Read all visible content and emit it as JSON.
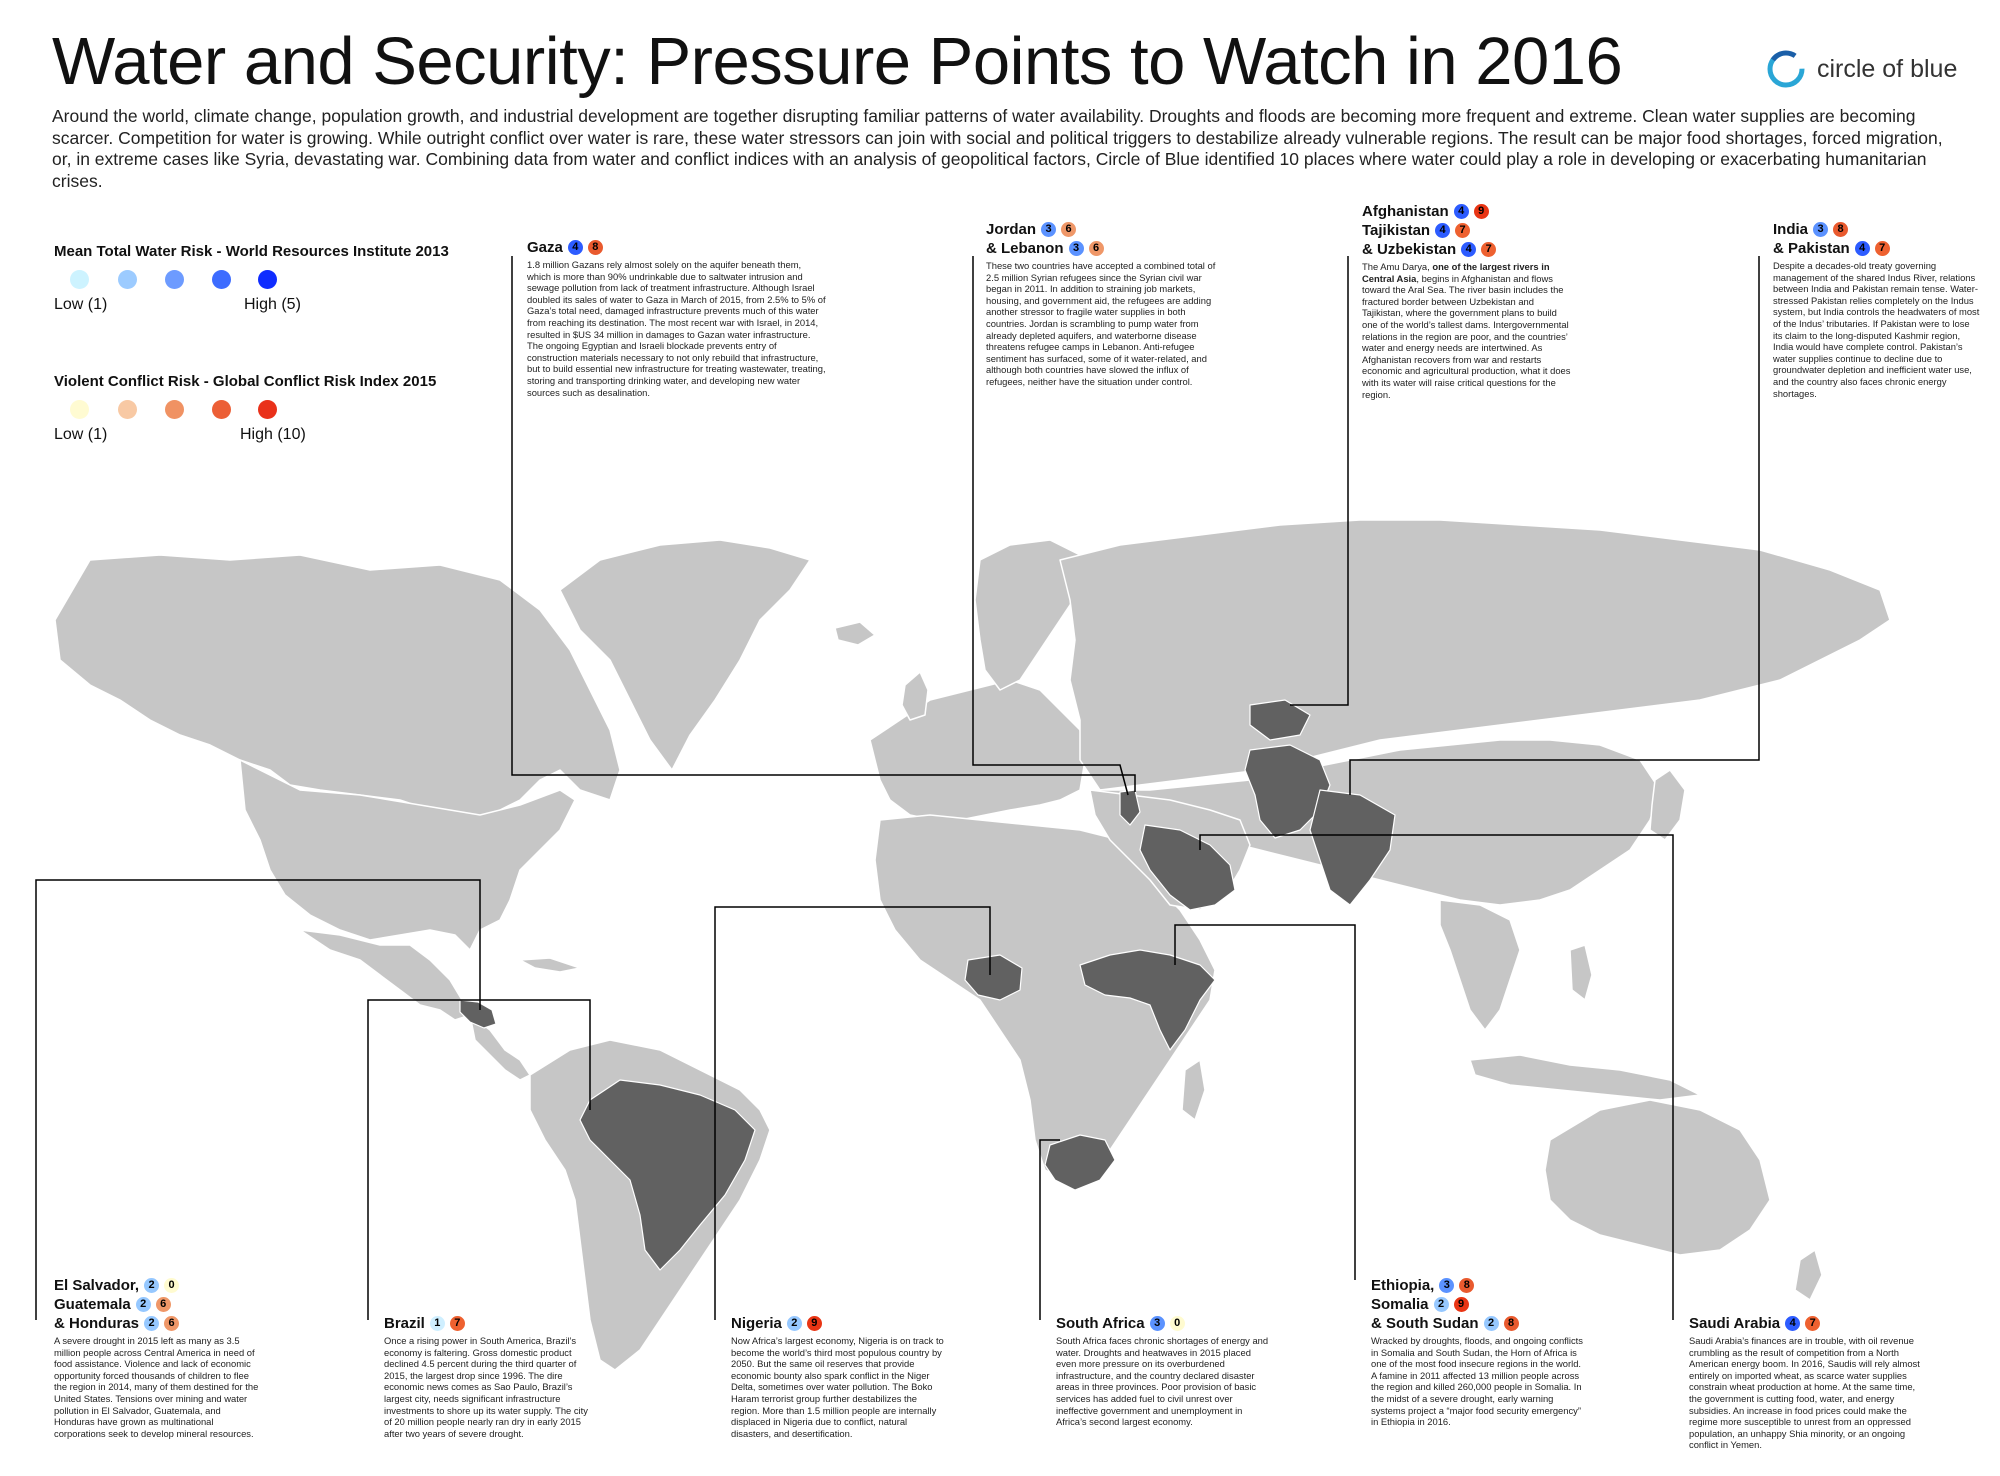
{
  "title": "Water and Security: Pressure Points to Watch in 2016",
  "logo": {
    "text": "circle of blue",
    "icon": "circle-of-blue-logo"
  },
  "intro": "Around the world, climate change, population growth, and industrial development are together disrupting familiar patterns of water availability. Droughts and floods are becoming more frequent and extreme. Clean water supplies are becoming scarcer. Competition for water is growing. While outright conflict over water is rare, these water stressors can join with social and political triggers to destabilize already vulnerable regions. The result can be major food shortages, forced migration, or, in extreme cases like Syria, devastating war. Combining data from water and conflict indices with an analysis of geopolitical factors, Circle of Blue identified 10 places where water could play a role in developing or exacerbating humanitarian crises.",
  "legend": {
    "water": {
      "title": "Mean Total Water Risk - World Resources Institute 2013",
      "low": "Low (1)",
      "high": "High (5)",
      "colors": [
        "#cdf3ff",
        "#9ccbff",
        "#6d9bff",
        "#3d6cff",
        "#0f2cff"
      ]
    },
    "conflict": {
      "title": "Violent Conflict Risk - Global Conflict Risk Index 2015",
      "low": "Low (1)",
      "high": "High (10)",
      "colors": [
        "#fffbd2",
        "#f8c9a4",
        "#f09263",
        "#ec5f36",
        "#e9311a"
      ]
    }
  },
  "colors": {
    "land": "#c6c6c6",
    "highlight": "#616161",
    "border": "#ffffff",
    "leader": "#000000"
  },
  "callouts": {
    "gaza": {
      "rows": [
        {
          "name": "Gaza",
          "water": "4",
          "conflict": "8"
        }
      ],
      "text": "1.8 million Gazans rely almost solely on the aquifer beneath them, which is more than 90% undrinkable due to saltwater intrusion and sewage pollution from lack of treatment infrastructure. Although Israel doubled its sales of water to Gaza in March of 2015, from 2.5% to 5% of Gaza’s total need, damaged infrastructure prevents much of this water from reaching its destination. The most recent war with Israel, in 2014, resulted in $US 34 million in damages to Gazan water infrastructure. The ongoing Egyptian and Israeli blockade prevents entry of construction materials necessary to not only rebuild that infrastructure, but to build essential new infrastructure for treating wastewater, treating, storing and transporting drinking water, and developing new water sources such as desalination."
    },
    "jordan": {
      "rows": [
        {
          "name": "Jordan",
          "water": "3",
          "conflict": "6"
        },
        {
          "name": "& Lebanon",
          "water": "3",
          "conflict": "6"
        }
      ],
      "text": "These two countries have accepted a combined total of 2.5 million Syrian refugees since the Syrian civil war began in 2011. In addition to straining job markets, housing, and government aid, the refugees are adding another stressor to fragile water supplies in both countries. Jordan is scrambling to pump water from already depleted aquifers, and waterborne disease threatens refugee camps in Lebanon. Anti-refugee sentiment has surfaced, some of it water-related, and although both countries have slowed the influx of refugees, neither have the situation under control."
    },
    "afghanistan": {
      "rows": [
        {
          "name": "Afghanistan",
          "water": "4",
          "conflict": "9"
        },
        {
          "name": "Tajikistan",
          "water": "4",
          "conflict": "7"
        },
        {
          "name": "& Uzbekistan",
          "water": "4",
          "conflict": "7"
        }
      ],
      "text_a": "The Amu Darya, ",
      "text_bold": "one of the largest rivers in Central Asia",
      "text_b": ", begins in Afghanistan and flows toward the Aral Sea. The river basin includes the fractured border between Uzbekistan and Tajikistan, where the government plans to build one of the world’s tallest dams. Intergovernmental relations in the region are poor, and the countries’ water and energy needs are intertwined. As Afghanistan recovers from war and restarts economic and agricultural production, what it does with its water will raise critical questions for the region."
    },
    "india": {
      "rows": [
        {
          "name": "India",
          "water": "3",
          "conflict": "8"
        },
        {
          "name": "& Pakistan",
          "water": "4",
          "conflict": "7"
        }
      ],
      "text": "Despite a decades-old treaty governing management of the shared Indus River, relations between India and Pakistan remain tense. Water-stressed Pakistan relies completely on the Indus system, but India controls the headwaters of most of the Indus’ tributaries. If Pakistan were to lose its claim to the long-disputed Kashmir region, India would have complete control. Pakistan’s water supplies continue to decline due to groundwater depletion and inefficient water use, and the country also faces chronic energy shortages."
    },
    "elsalvador": {
      "rows": [
        {
          "name": "El Salvador,",
          "water": "2",
          "conflict": "0"
        },
        {
          "name": "Guatemala",
          "water": "2",
          "conflict": "6"
        },
        {
          "name": "& Honduras",
          "water": "2",
          "conflict": "6"
        }
      ],
      "text": "A severe drought in 2015 left as many as 3.5 million people across Central America in need of food assistance. Violence and lack of economic opportunity forced thousands of children to flee the region in 2014, many of them destined for the United States. Tensions over mining and water pollution in El Salvador, Guatemala, and Honduras have grown as multinational corporations seek to develop mineral resources."
    },
    "brazil": {
      "rows": [
        {
          "name": "Brazil",
          "water": "1",
          "conflict": "7"
        }
      ],
      "text": "Once a rising power in South America, Brazil’s economy is faltering. Gross domestic product declined 4.5 percent during the third quarter of 2015, the largest drop since 1996. The dire economic news comes as Sao Paulo, Brazil’s largest city, needs significant infrastructure investments to shore up its water supply. The city of 20 million people nearly ran dry in early 2015 after two years of severe drought."
    },
    "nigeria": {
      "rows": [
        {
          "name": "Nigeria",
          "water": "2",
          "conflict": "9"
        }
      ],
      "text": "Now Africa’s largest economy, Nigeria is on track to become the world’s third most populous country by 2050. But the same oil reserves that provide economic bounty also spark conflict in the Niger Delta, sometimes over water pollution. The Boko Haram terrorist group further destabilizes the region. More than 1.5 million people are internally displaced in Nigeria due to conflict, natural disasters, and desertification."
    },
    "southafrica": {
      "rows": [
        {
          "name": "South Africa",
          "water": "3",
          "conflict": "0"
        }
      ],
      "text": "South Africa faces chronic shortages of energy and water. Droughts and heatwaves in 2015 placed even more pressure on its overburdened infrastructure, and the country declared disaster areas in three provinces. Poor provision of basic services has added fuel to civil unrest over ineffective government and unemployment in Africa’s second largest economy."
    },
    "ethiopia": {
      "rows": [
        {
          "name": "Ethiopia,",
          "water": "3",
          "conflict": "8"
        },
        {
          "name": "Somalia",
          "water": "2",
          "conflict": "9"
        },
        {
          "name": "& South Sudan",
          "water": "2",
          "conflict": "8"
        }
      ],
      "text": "Wracked by droughts, floods, and ongoing conflicts in Somalia and South Sudan, the Horn of Africa is one of the most food insecure regions in the world. A famine in 2011 affected 13 million people across the region and killed 260,000 people in Somalia. In the midst of a severe drought, early warning systems project a “major food security emergency” in Ethiopia in 2016."
    },
    "saudi": {
      "rows": [
        {
          "name": "Saudi Arabia",
          "water": "4",
          "conflict": "7"
        }
      ],
      "text": "Saudi Arabia’s finances are in trouble, with oil revenue crumbling as the result of competition from a North American energy boom. In 2016, Saudis will rely almost entirely on imported wheat, as scarce water supplies constrain wheat production at home. At the same time, the government is cutting food, water, and energy subsidies. An increase in food prices could make the regime more susceptible to unrest from an oppressed population, an unhappy Shia minority, or an ongoing conflict in Yemen."
    }
  }
}
